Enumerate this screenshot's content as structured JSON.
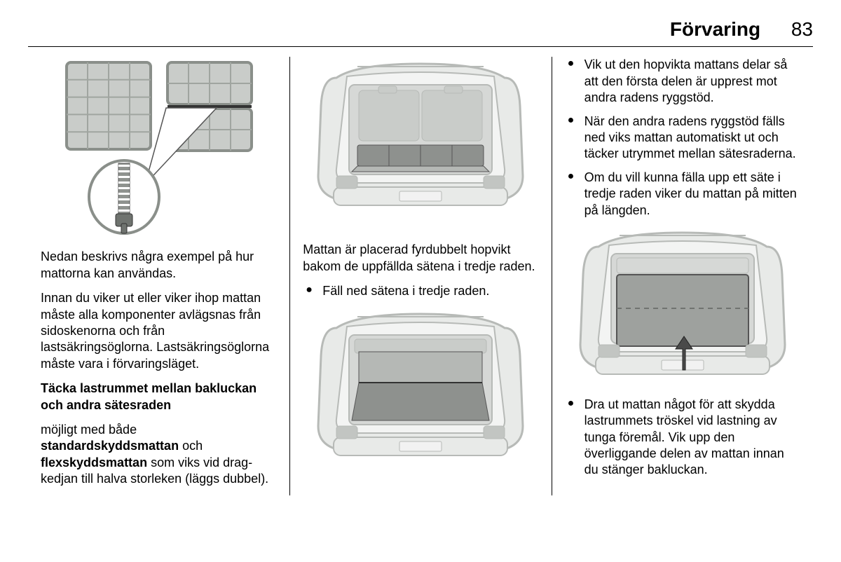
{
  "header": {
    "title": "Förvaring",
    "page_number": "83"
  },
  "col1": {
    "figure": {
      "mat_outline": "#8a8f8a",
      "mat_fill": "#c9ccc9",
      "mat_grid": "#a0a5a0",
      "zipper_body": "#8f938f",
      "zipper_pull": "#6f736f",
      "arrow": "#555"
    },
    "p1": "Nedan beskrivs några exempel på hur mattorna kan användas.",
    "p2": "Innan du viker ut eller viker ihop mattan måste alla komponenter avlägsnas från sidoskenorna och från lastsäkringsöglorna. Lastsäkrings­öglorna måste vara i förvaringsläget.",
    "subhead": "Täcka lastrummet mellan bakluckan och andra sätesraden",
    "p3a": "möjligt med både ",
    "p3b": "standardskyddsmattan",
    "p3c": " och ",
    "p3d": "flexskyddsmattan",
    "p3e": " som viks vid drag­kedjan till halva storleken (läggs dubbel)."
  },
  "col2": {
    "car": {
      "body": "#e8eae8",
      "body_stroke": "#b7bab7",
      "interior": "#d6d8d6",
      "seat": "#c9ccc9",
      "mat_dark": "#8e918e",
      "mat_light": "#b5b8b5",
      "tail": "#c2c5c2",
      "plate": "#f2f2f2"
    },
    "p1": "Mattan är placerad fyrdubbelt hopvikt bakom de uppfällda sätena i tredje raden.",
    "b1": "Fäll ned sätena i tredje raden."
  },
  "col3": {
    "b1": "Vik ut den hopvikta mattans delar så att den första delen är upprest mot andra radens ryggstöd.",
    "b2": "När den andra radens ryggstöd fälls ned viks mattan automatiskt ut och täcker utrymmet mellan sätesraderna.",
    "b3": "Om du vill kunna fälla upp ett säte i tredje raden viker du mattan på mitten på längden.",
    "b4": "Dra ut mattan något för att skydda lastrummets tröskel vid lastning av tunga föremål. Vik upp den överliggande delen av mattan innan du stänger bakluckan.",
    "car": {
      "body": "#e8eae8",
      "body_stroke": "#b7bab7",
      "interior": "#d6d8d6",
      "mat": "#9ea19e",
      "mat_dash": "#707370",
      "arrow": "#4a4a4a",
      "plate": "#f2f2f2"
    }
  }
}
